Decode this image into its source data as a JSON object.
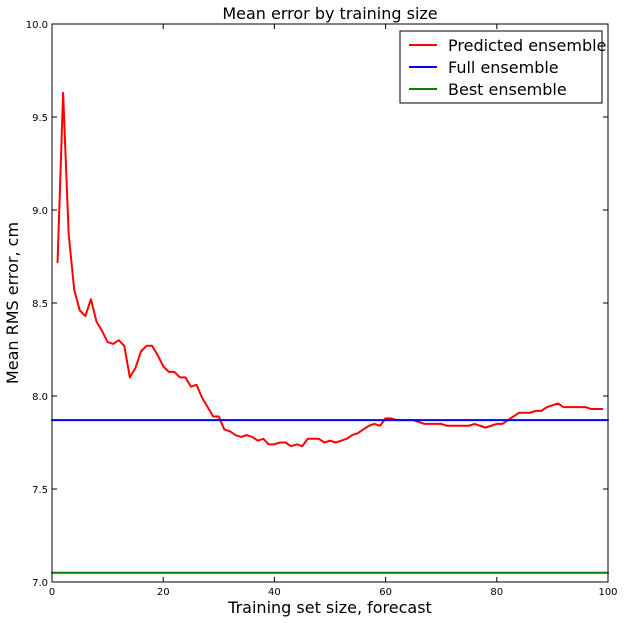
{
  "chart_data": {
    "type": "line",
    "title": "Mean error by training size",
    "xlabel": "Training set size, forecast",
    "ylabel": "Mean RMS error, cm",
    "xlim": [
      0,
      100
    ],
    "ylim": [
      7.0,
      10.0
    ],
    "xticks": [
      0,
      20,
      40,
      60,
      80,
      100
    ],
    "yticks": [
      7.0,
      7.5,
      8.0,
      8.5,
      9.0,
      9.5,
      10.0
    ],
    "xtick_labels": [
      "0",
      "20",
      "40",
      "60",
      "80",
      "100"
    ],
    "ytick_labels": [
      "7.0",
      "7.5",
      "8.0",
      "8.5",
      "9.0",
      "9.5",
      "10.0"
    ],
    "grid": false,
    "legend_position": "top-right",
    "series": [
      {
        "name": "Predicted ensemble",
        "color": "#ff0000",
        "x": [
          1,
          2,
          3,
          4,
          5,
          6,
          7,
          8,
          9,
          10,
          11,
          12,
          13,
          14,
          15,
          16,
          17,
          18,
          19,
          20,
          21,
          22,
          23,
          24,
          25,
          26,
          27,
          28,
          29,
          30,
          31,
          32,
          33,
          34,
          35,
          36,
          37,
          38,
          39,
          40,
          41,
          42,
          43,
          44,
          45,
          46,
          47,
          48,
          49,
          50,
          51,
          52,
          53,
          54,
          55,
          56,
          57,
          58,
          59,
          60,
          61,
          62,
          63,
          64,
          65,
          66,
          67,
          68,
          69,
          70,
          71,
          72,
          73,
          74,
          75,
          76,
          77,
          78,
          79,
          80,
          81,
          82,
          83,
          84,
          85,
          86,
          87,
          88,
          89,
          90,
          91,
          92,
          93,
          94,
          95,
          96,
          97,
          98,
          99
        ],
        "y": [
          8.72,
          9.63,
          8.87,
          8.57,
          8.46,
          8.43,
          8.52,
          8.4,
          8.35,
          8.29,
          8.28,
          8.3,
          8.27,
          8.1,
          8.15,
          8.24,
          8.27,
          8.27,
          8.22,
          8.16,
          8.13,
          8.13,
          8.1,
          8.1,
          8.05,
          8.06,
          7.99,
          7.94,
          7.89,
          7.89,
          7.82,
          7.81,
          7.79,
          7.78,
          7.79,
          7.78,
          7.76,
          7.77,
          7.74,
          7.74,
          7.75,
          7.75,
          7.73,
          7.74,
          7.73,
          7.77,
          7.77,
          7.77,
          7.75,
          7.76,
          7.75,
          7.76,
          7.77,
          7.79,
          7.8,
          7.82,
          7.84,
          7.85,
          7.84,
          7.88,
          7.88,
          7.87,
          7.87,
          7.87,
          7.87,
          7.86,
          7.85,
          7.85,
          7.85,
          7.85,
          7.84,
          7.84,
          7.84,
          7.84,
          7.84,
          7.85,
          7.84,
          7.83,
          7.84,
          7.85,
          7.85,
          7.87,
          7.89,
          7.91,
          7.91,
          7.91,
          7.92,
          7.92,
          7.94,
          7.95,
          7.96,
          7.94,
          7.94,
          7.94,
          7.94,
          7.94,
          7.93,
          7.93,
          7.93
        ]
      },
      {
        "name": "Full ensemble",
        "color": "#0000ff",
        "x": [
          0,
          100
        ],
        "y": [
          7.87,
          7.87
        ]
      },
      {
        "name": "Best ensemble",
        "color": "#008000",
        "x": [
          0,
          100
        ],
        "y": [
          7.05,
          7.05
        ]
      }
    ]
  }
}
